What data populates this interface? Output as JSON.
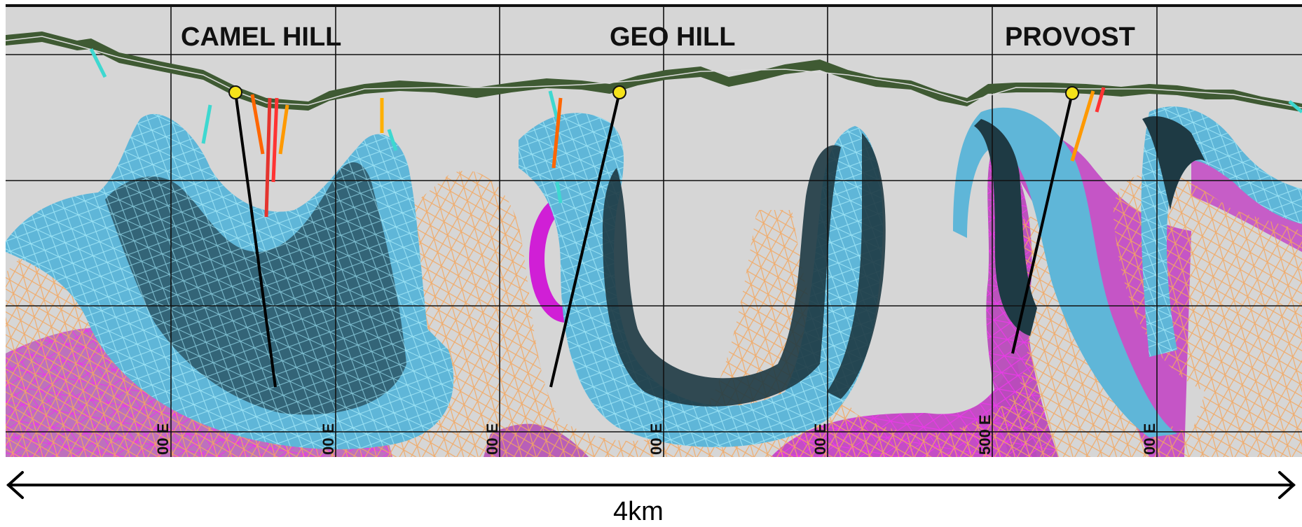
{
  "title": "",
  "deposits": [
    {
      "name": "CAMEL HILL"
    },
    {
      "name": "GEO HILL"
    },
    {
      "name": "PROVOST"
    }
  ],
  "grid_ticks": [
    "00 E",
    "00 E",
    "00 E",
    "00 E",
    "00 E",
    "500 E",
    "00 E"
  ],
  "scale": {
    "label": "4km"
  },
  "colors": {
    "background": "#d6d6d6",
    "folded_unit_blue": "#5fb6d8",
    "folded_unit_dark": "#1e3a44",
    "mesh_orange": "#f3a760",
    "intrusion_magenta": "#d01fd6",
    "topography_green": "#3f5a33",
    "collar_yellow": "#f5e21a",
    "drillhole_black": "#000000",
    "grid_line": "#111111"
  }
}
